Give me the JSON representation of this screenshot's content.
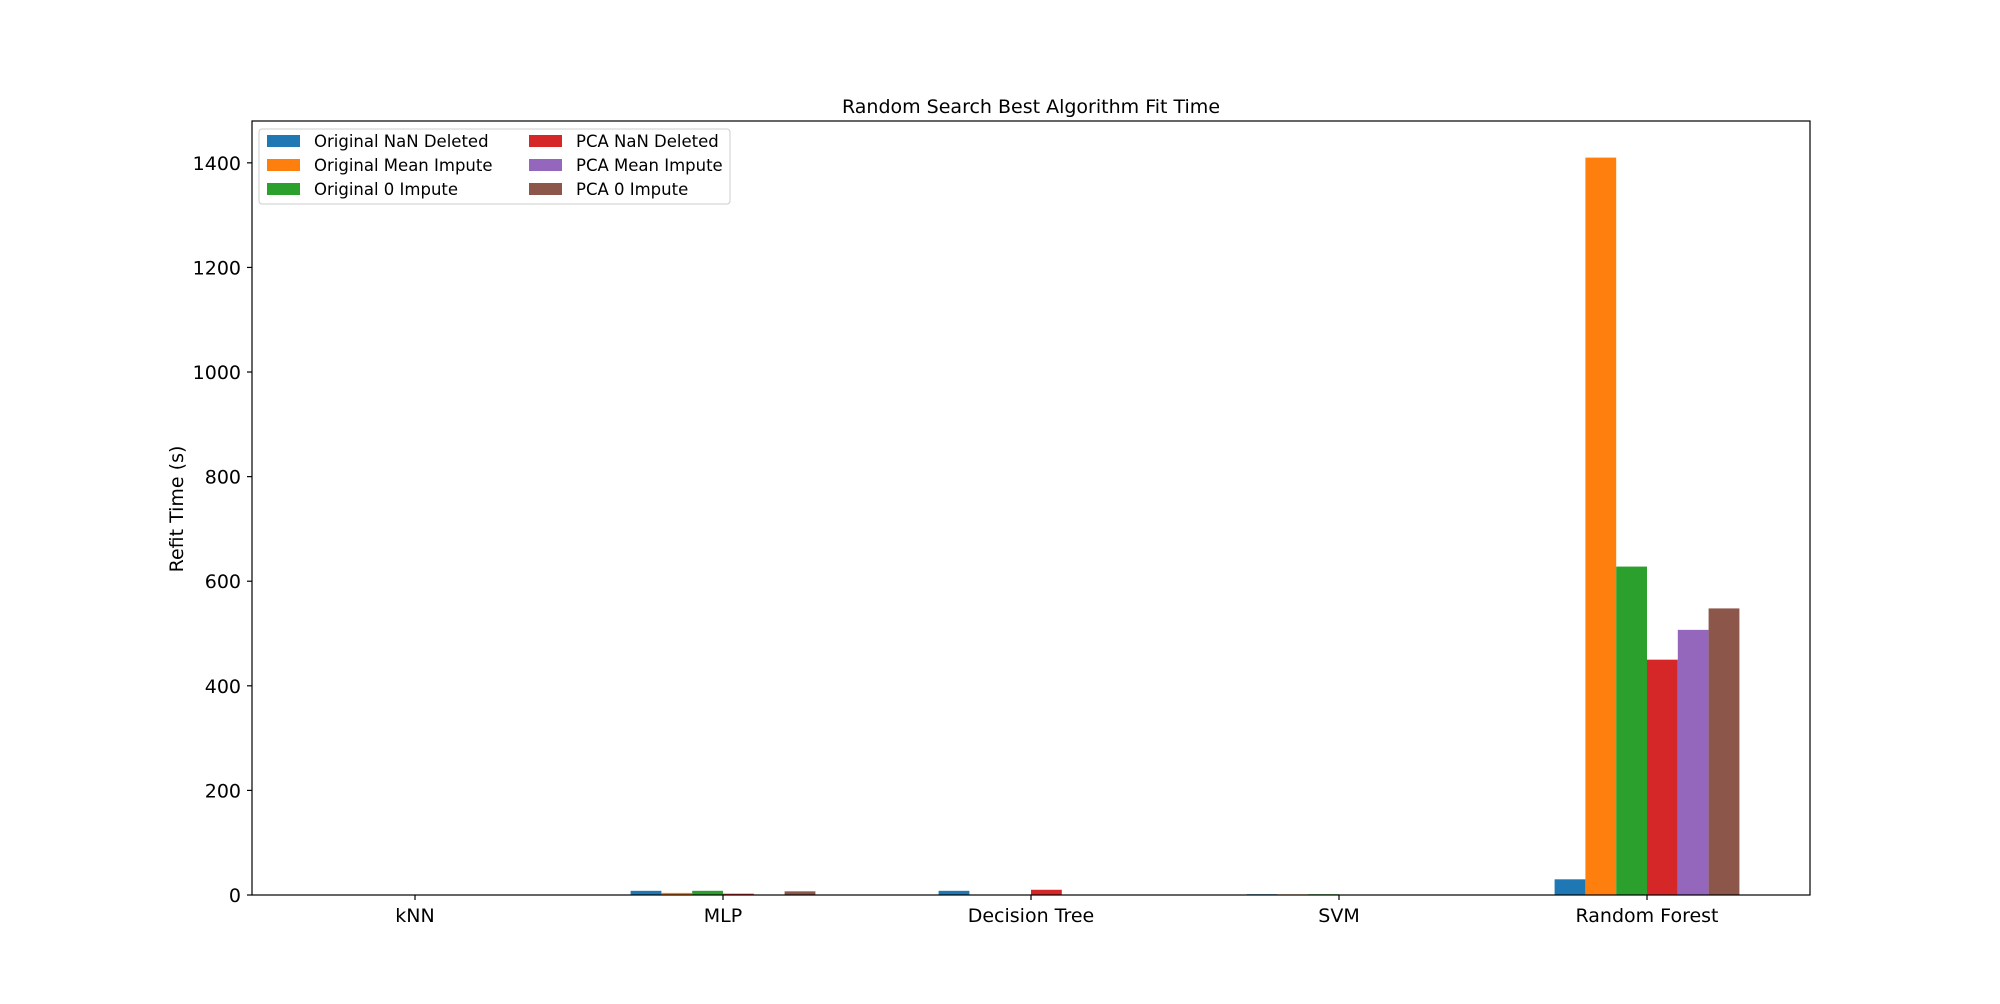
{
  "chart_data": {
    "type": "bar",
    "title": "Random Search Best Algorithm Fit Time",
    "xlabel": "",
    "ylabel": "Refit Time (s)",
    "ylim": [
      0,
      1480
    ],
    "yticks": [
      0,
      200,
      400,
      600,
      800,
      1000,
      1200,
      1400
    ],
    "grid": false,
    "legend_position": "top-left",
    "legend_columns": 2,
    "categories": [
      "kNN",
      "MLP",
      "Decision Tree",
      "SVM",
      "Random Forest"
    ],
    "series": [
      {
        "name": "Original NaN Deleted",
        "color": "#1f77b4",
        "values": [
          0.05,
          8,
          8,
          1.5,
          30
        ]
      },
      {
        "name": "Original Mean Impute",
        "color": "#ff7f0e",
        "values": [
          0.05,
          4,
          0.3,
          1.2,
          1410
        ]
      },
      {
        "name": "Original 0 Impute",
        "color": "#2ca02c",
        "values": [
          0.05,
          8,
          0.3,
          1.5,
          628
        ]
      },
      {
        "name": "PCA NaN Deleted",
        "color": "#d62728",
        "values": [
          0.05,
          2.5,
          10,
          0.5,
          450
        ]
      },
      {
        "name": "PCA Mean Impute",
        "color": "#9467bd",
        "values": [
          0.05,
          0.5,
          0.2,
          0.2,
          507
        ]
      },
      {
        "name": "PCA 0 Impute",
        "color": "#8c564b",
        "values": [
          0.05,
          7,
          0.2,
          0.2,
          548
        ]
      }
    ]
  }
}
